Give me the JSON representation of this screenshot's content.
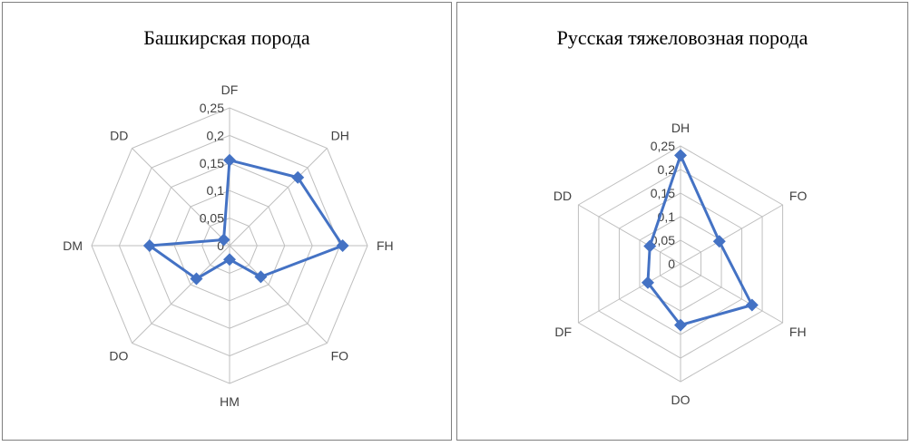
{
  "chart_data": [
    {
      "type": "radar",
      "title": "Башкирская порода",
      "categories": [
        "DF",
        "DH",
        "FH",
        "FO",
        "HM",
        "DO",
        "DM",
        "DD"
      ],
      "series": [
        {
          "values": [
            0.155,
            0.175,
            0.205,
            0.08,
            0.025,
            0.085,
            0.145,
            0.015
          ]
        }
      ],
      "rlim": [
        0,
        0.25
      ],
      "ticks": [
        "0",
        "0,05",
        "0,1",
        "0,15",
        "0,2",
        "0,25"
      ],
      "grid": true,
      "color": "#4472C4"
    },
    {
      "type": "radar",
      "title": "Русская тяжеловозная порода",
      "categories": [
        "DH",
        "FO",
        "FH",
        "DO",
        "DF",
        "DD"
      ],
      "series": [
        {
          "values": [
            0.23,
            0.095,
            0.175,
            0.13,
            0.08,
            0.075
          ]
        }
      ],
      "rlim": [
        0,
        0.25
      ],
      "ticks": [
        "0",
        "0,05",
        "0,1",
        "0,15",
        "0,2",
        "0,25"
      ],
      "grid": true,
      "color": "#4472C4"
    }
  ]
}
